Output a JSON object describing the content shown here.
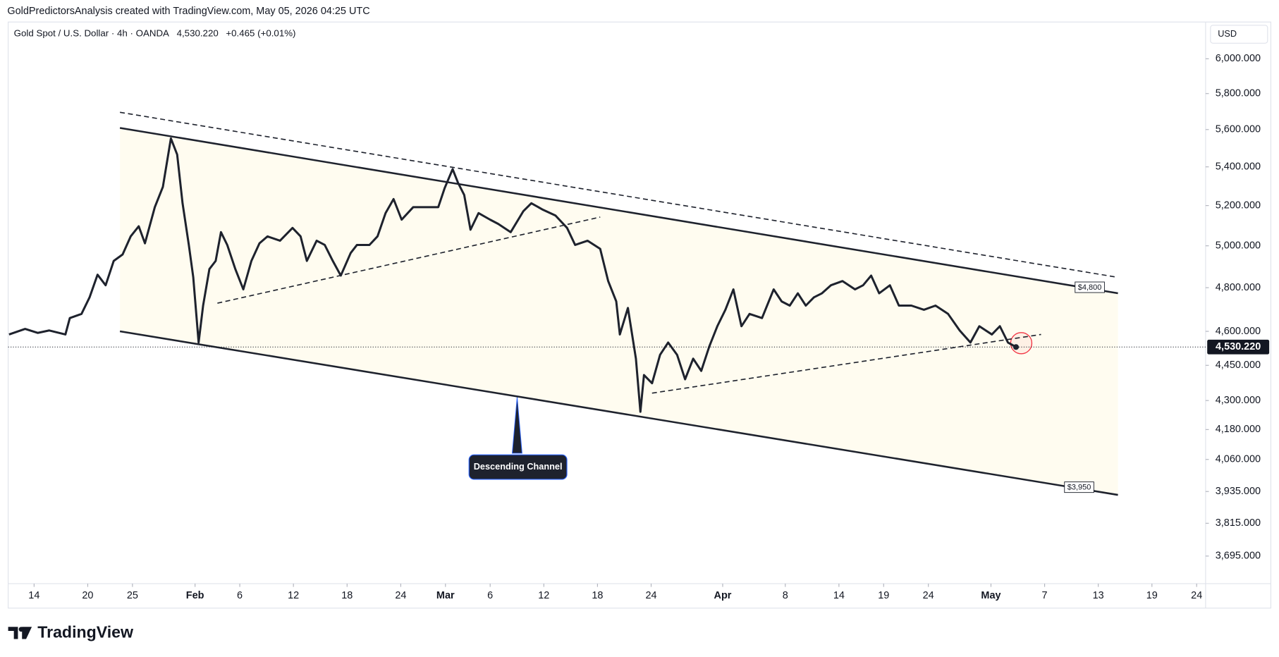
{
  "attribution": "GoldPredictorsAnalysis created with TradingView.com, May 05, 2026 04:25 UTC",
  "brand": "TradingView",
  "chart_data": {
    "type": "line",
    "title": "Gold Spot / U.S. Dollar · 4h · OANDA",
    "last_price": 4530.22,
    "last_price_label": "4,530.220",
    "change_label": "+0.465 (+0.01%)",
    "y_unit": "USD",
    "color": "#1e222d",
    "log_scale": true,
    "x": [
      11.2,
      13.0,
      14.4,
      15.7,
      17.5,
      18.0,
      19.3,
      20.2,
      21.1,
      22.0,
      22.9,
      23.9,
      24.8,
      25.7,
      26.4,
      27.5,
      28.4,
      29.3,
      30.0,
      30.6,
      31.3,
      31.8,
      32.4,
      32.9,
      33.6,
      34.3,
      34.9,
      35.6,
      36.5,
      37.4,
      38.3,
      39.2,
      40.1,
      41.5,
      42.9,
      43.8,
      44.5,
      45.6,
      46.5,
      47.4,
      48.3,
      49.4,
      50.1,
      51.5,
      52.4,
      53.3,
      54.2,
      55.1,
      56.4,
      57.8,
      59.2,
      59.9,
      60.8,
      61.4,
      62.1,
      62.8,
      63.7,
      65.0,
      65.9,
      67.3,
      68.7,
      69.6,
      70.9,
      72.3,
      73.6,
      74.5,
      75.9,
      77.3,
      78.2,
      79.1,
      79.5,
      80.4,
      81.3,
      81.8,
      82.2,
      83.1,
      84.0,
      84.9,
      85.9,
      86.8,
      87.7,
      88.6,
      89.5,
      90.4,
      91.3,
      92.2,
      93.1,
      94.0,
      95.4,
      96.7,
      97.6,
      98.5,
      99.4,
      100.3,
      101.2,
      102.1,
      103.1,
      104.4,
      105.8,
      106.7,
      107.6,
      108.5,
      109.7,
      110.7,
      112.1,
      113.5,
      114.8,
      116.2,
      117.5,
      118.7,
      119.7,
      121.1,
      122.0,
      122.9,
      123.8
    ],
    "values": [
      4586,
      4611,
      4593,
      4604,
      4586,
      4660,
      4679,
      4755,
      4861,
      4811,
      4927,
      4958,
      5046,
      5096,
      5012,
      5192,
      5296,
      5552,
      5465,
      5212,
      5004,
      4850,
      4550,
      4717,
      4888,
      4927,
      5067,
      5004,
      4888,
      4792,
      4927,
      5012,
      5046,
      5025,
      5088,
      5046,
      4927,
      5025,
      5004,
      4927,
      4857,
      4965,
      5004,
      5004,
      5046,
      5162,
      5233,
      5129,
      5192,
      5192,
      5192,
      5288,
      5388,
      5317,
      5254,
      5079,
      5162,
      5129,
      5108,
      5067,
      5171,
      5212,
      5179,
      5150,
      5088,
      5004,
      5025,
      4985,
      4831,
      4736,
      4586,
      4706,
      4479,
      4253,
      4408,
      4373,
      4496,
      4550,
      4496,
      4390,
      4479,
      4426,
      4532,
      4623,
      4698,
      4792,
      4623,
      4679,
      4660,
      4792,
      4736,
      4717,
      4774,
      4717,
      4755,
      4774,
      4811,
      4831,
      4792,
      4811,
      4857,
      4774,
      4811,
      4717,
      4717,
      4698,
      4717,
      4679,
      4604,
      4550,
      4623,
      4586,
      4623,
      4550,
      4530.22
    ],
    "xlim": [
      11.1,
      145
    ],
    "xticks": [
      14,
      20,
      25,
      {
        "value": 32,
        "label": "Feb"
      },
      {
        "value": 37,
        "label": "6"
      },
      {
        "value": 43,
        "label": "12"
      },
      {
        "value": 49,
        "label": "18"
      },
      {
        "value": 55,
        "label": "24"
      },
      {
        "value": 60,
        "label": "Mar"
      },
      {
        "value": 65,
        "label": "6"
      },
      {
        "value": 71,
        "label": "12"
      },
      {
        "value": 77,
        "label": "18"
      },
      {
        "value": 83,
        "label": "24"
      },
      {
        "value": 91,
        "label": "Apr"
      },
      {
        "value": 98,
        "label": "8"
      },
      {
        "value": 104,
        "label": "14"
      },
      {
        "value": 109,
        "label": "19"
      },
      {
        "value": 114,
        "label": "24"
      },
      {
        "value": 121,
        "label": "May"
      },
      {
        "value": 127,
        "label": "7"
      },
      {
        "value": 133,
        "label": "13"
      },
      {
        "value": 139,
        "label": "19"
      },
      {
        "value": 144,
        "label": "24"
      }
    ],
    "ylim": [
      3597,
      6219
    ],
    "yticks": [
      {
        "value": 6000,
        "label": "6,000.000"
      },
      {
        "value": 5800,
        "label": "5,800.000"
      },
      {
        "value": 5600,
        "label": "5,600.000"
      },
      {
        "value": 5400,
        "label": "5,400.000"
      },
      {
        "value": 5200,
        "label": "5,200.000"
      },
      {
        "value": 5000,
        "label": "5,000.000"
      },
      {
        "value": 4800,
        "label": "4,800.000"
      },
      {
        "value": 4600,
        "label": "4,600.000"
      },
      {
        "value": 4450,
        "label": "4,450.000"
      },
      {
        "value": 4300,
        "label": "4,300.000"
      },
      {
        "value": 4180,
        "label": "4,180.000"
      },
      {
        "value": 4060,
        "label": "4,060.000"
      },
      {
        "value": 3935,
        "label": "3,935.000"
      },
      {
        "value": 3815,
        "label": "3,815.000"
      },
      {
        "value": 3695,
        "label": "3,695.000"
      }
    ],
    "trendlines": [
      {
        "style": "solid",
        "x": [
          23.6,
          135.2
        ],
        "y": [
          5609,
          4774
        ]
      },
      {
        "style": "solid",
        "x": [
          23.6,
          135.2
        ],
        "y": [
          4600,
          3922
        ]
      },
      {
        "style": "dashed",
        "x": [
          23.6,
          135.0
        ],
        "y": [
          5695,
          4850
        ]
      },
      {
        "style": "dashed",
        "x": [
          34.5,
          77.3
        ],
        "y": [
          4728,
          5142
        ]
      },
      {
        "style": "dashed",
        "x": [
          83.1,
          126.6
        ],
        "y": [
          4331,
          4586
        ]
      }
    ],
    "price_labels": [
      {
        "value": 4800,
        "label": "$4,800"
      },
      {
        "value": 3950,
        "label": "$3,950"
      }
    ],
    "annotation": "Descending Channel"
  }
}
